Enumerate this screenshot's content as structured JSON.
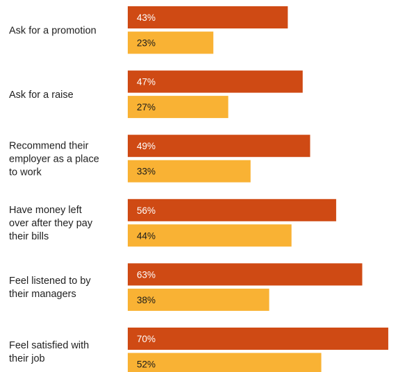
{
  "chart_data": {
    "type": "bar",
    "orientation": "horizontal",
    "title": "",
    "xlabel": "",
    "ylabel": "",
    "xlim": [
      0,
      70
    ],
    "grid": false,
    "legend": "none",
    "categories": [
      [
        "Ask for a promotion"
      ],
      [
        "Ask for a raise"
      ],
      [
        "Recommend their",
        "employer as a place",
        "to work"
      ],
      [
        "Have money left",
        "over after they pay",
        "their bills"
      ],
      [
        "Feel listened to by",
        "their managers"
      ],
      [
        "Feel satisfied with",
        "their job"
      ]
    ],
    "series": [
      {
        "values": [
          43,
          47,
          49,
          56,
          63,
          70
        ],
        "labels": [
          "43%",
          "47%",
          "49%",
          "56%",
          "63%",
          "70%"
        ],
        "color": "#cf4a14",
        "label_color": "#ffffff"
      },
      {
        "values": [
          23,
          27,
          33,
          44,
          38,
          52
        ],
        "labels": [
          "23%",
          "27%",
          "33%",
          "44%",
          "38%",
          "52%"
        ],
        "color": "#f9b234",
        "label_color": "#1a1a1a"
      }
    ]
  }
}
